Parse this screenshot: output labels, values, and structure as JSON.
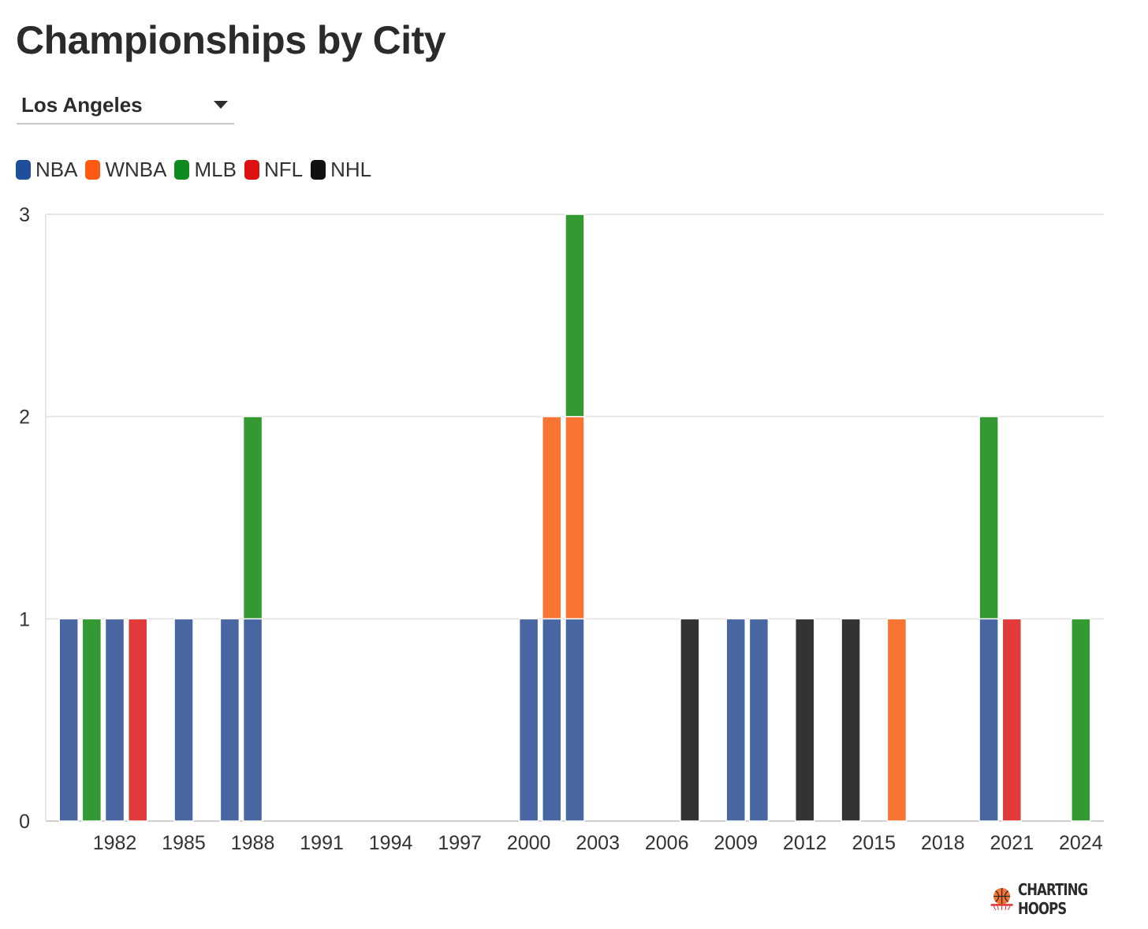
{
  "title": "Championships by City",
  "dropdown": {
    "selected": "Los Angeles"
  },
  "legend": [
    {
      "name": "NBA",
      "color": "#1f4e9c"
    },
    {
      "name": "WNBA",
      "color": "#ff5a14"
    },
    {
      "name": "MLB",
      "color": "#0f8a1e"
    },
    {
      "name": "NFL",
      "color": "#dd1111"
    },
    {
      "name": "NHL",
      "color": "#111111"
    }
  ],
  "brand": "CHARTING HOOPS",
  "chart_data": {
    "type": "bar",
    "stacked": true,
    "title": "Championships by City",
    "xlabel": "",
    "ylabel": "",
    "ylim": [
      0,
      3
    ],
    "y_ticks": [
      0,
      1,
      2,
      3
    ],
    "x_range": [
      1979,
      2025
    ],
    "x_ticks": [
      1982,
      1985,
      1988,
      1991,
      1994,
      1997,
      2000,
      2003,
      2006,
      2009,
      2012,
      2015,
      2018,
      2021,
      2024
    ],
    "series_colors": {
      "NBA": "#4866a1",
      "WNBA": "#f97332",
      "MLB": "#339a33",
      "NFL": "#e03a3a",
      "NHL": "#333333"
    },
    "bars": [
      {
        "year": 1980,
        "segments": [
          {
            "league": "NBA",
            "value": 1
          }
        ]
      },
      {
        "year": 1981,
        "segments": [
          {
            "league": "MLB",
            "value": 1
          }
        ]
      },
      {
        "year": 1982,
        "segments": [
          {
            "league": "NBA",
            "value": 1
          }
        ]
      },
      {
        "year": 1983,
        "segments": [
          {
            "league": "NFL",
            "value": 1
          }
        ]
      },
      {
        "year": 1985,
        "segments": [
          {
            "league": "NBA",
            "value": 1
          }
        ]
      },
      {
        "year": 1987,
        "segments": [
          {
            "league": "NBA",
            "value": 1
          }
        ]
      },
      {
        "year": 1988,
        "segments": [
          {
            "league": "NBA",
            "value": 1
          },
          {
            "league": "MLB",
            "value": 1
          }
        ]
      },
      {
        "year": 2000,
        "segments": [
          {
            "league": "NBA",
            "value": 1
          }
        ]
      },
      {
        "year": 2001,
        "segments": [
          {
            "league": "NBA",
            "value": 1
          },
          {
            "league": "WNBA",
            "value": 1
          }
        ]
      },
      {
        "year": 2002,
        "segments": [
          {
            "league": "NBA",
            "value": 1
          },
          {
            "league": "WNBA",
            "value": 1
          },
          {
            "league": "MLB",
            "value": 1
          }
        ]
      },
      {
        "year": 2007,
        "segments": [
          {
            "league": "NHL",
            "value": 1
          }
        ]
      },
      {
        "year": 2009,
        "segments": [
          {
            "league": "NBA",
            "value": 1
          }
        ]
      },
      {
        "year": 2010,
        "segments": [
          {
            "league": "NBA",
            "value": 1
          }
        ]
      },
      {
        "year": 2012,
        "segments": [
          {
            "league": "NHL",
            "value": 1
          }
        ]
      },
      {
        "year": 2014,
        "segments": [
          {
            "league": "NHL",
            "value": 1
          }
        ]
      },
      {
        "year": 2016,
        "segments": [
          {
            "league": "WNBA",
            "value": 1
          }
        ]
      },
      {
        "year": 2020,
        "segments": [
          {
            "league": "NBA",
            "value": 1
          },
          {
            "league": "MLB",
            "value": 1
          }
        ]
      },
      {
        "year": 2021,
        "segments": [
          {
            "league": "NFL",
            "value": 1
          }
        ]
      },
      {
        "year": 2024,
        "segments": [
          {
            "league": "MLB",
            "value": 1
          }
        ]
      }
    ]
  }
}
